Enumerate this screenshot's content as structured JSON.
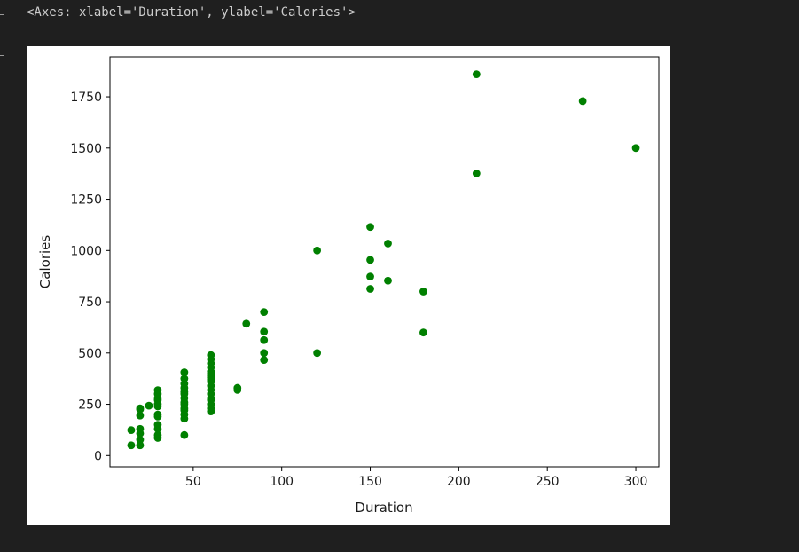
{
  "output_repr": "<Axes: xlabel='Duration', ylabel='Calories'>",
  "colors": {
    "point": "#008000",
    "axis": "#000000",
    "background": "#ffffff",
    "page": "#1f1f1f"
  },
  "chart_data": {
    "type": "scatter",
    "xlabel": "Duration",
    "ylabel": "Calories",
    "xlim": [
      3,
      313
    ],
    "ylim": [
      -55,
      1945
    ],
    "xticks": [
      50,
      100,
      150,
      200,
      250,
      300
    ],
    "yticks": [
      0,
      250,
      500,
      750,
      1000,
      1250,
      1500,
      1750
    ],
    "grid": false,
    "x": [
      15,
      15,
      20,
      20,
      20,
      20,
      20,
      20,
      20,
      25,
      30,
      30,
      30,
      30,
      30,
      30,
      30,
      30,
      30,
      30,
      30,
      30,
      45,
      45,
      45,
      45,
      45,
      45,
      45,
      45,
      45,
      45,
      45,
      45,
      45,
      45,
      60,
      60,
      60,
      60,
      60,
      60,
      60,
      60,
      60,
      60,
      60,
      60,
      60,
      60,
      60,
      60,
      60,
      60,
      75,
      75,
      80,
      90,
      90,
      90,
      90,
      90,
      120,
      120,
      150,
      150,
      150,
      150,
      160,
      160,
      180,
      180,
      210,
      210,
      270,
      300
    ],
    "y": [
      50,
      124,
      50,
      77,
      108,
      130,
      195,
      225,
      230,
      243,
      86,
      100,
      130,
      150,
      190,
      200,
      240,
      250,
      270,
      280,
      300,
      319,
      100,
      180,
      230,
      250,
      260,
      280,
      300,
      310,
      330,
      350,
      375,
      406,
      200,
      220,
      215,
      230,
      250,
      270,
      280,
      300,
      320,
      340,
      360,
      380,
      400,
      410,
      430,
      450,
      470,
      490,
      370,
      390,
      320,
      330,
      643,
      466,
      500,
      563,
      604,
      700,
      500,
      1000,
      813,
      873,
      954,
      1115,
      853,
      1034,
      600,
      800,
      1376,
      1860,
      1729,
      1500
    ]
  }
}
